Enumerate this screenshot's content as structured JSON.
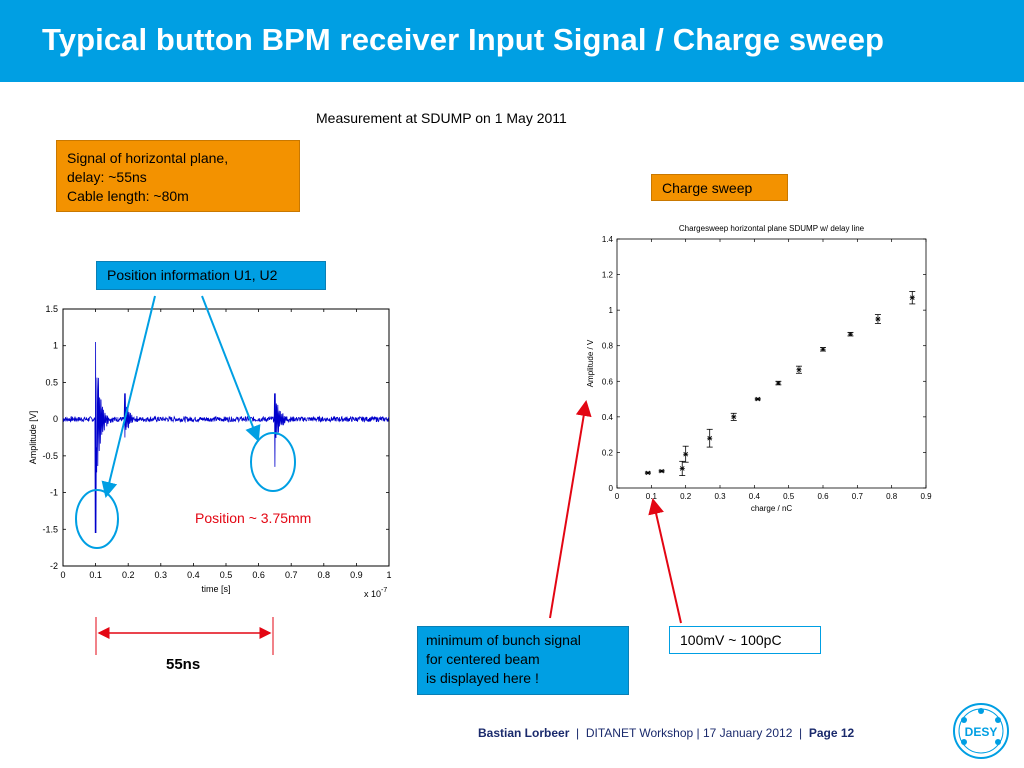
{
  "title": "Typical button BPM receiver Input Signal / Charge sweep",
  "subtitle": "Measurement at SDUMP on 1 May 2011",
  "box_signal": {
    "line1": "Signal of horizontal plane,",
    "line2": "delay:  ~55ns",
    "line3": "Cable length: ~80m"
  },
  "box_charge_sweep": "Charge sweep",
  "box_position_info": "Position information U1, U2",
  "position_note": "Position ~ 3.75mm",
  "duration_label": "55ns",
  "box_minimum": {
    "line1": "minimum of bunch signal",
    "line2": "for centered beam",
    "line3": "is displayed here !"
  },
  "box_ratio": "100mV ~ 100pC",
  "footer": {
    "author": "Bastian Lorbeer",
    "sep": "|",
    "event": "DITANET Workshop | 17 January 2012",
    "page": "Page 12"
  },
  "logo_text": "DESY",
  "colors": {
    "title_bar": "#009fe3",
    "orange": "#f39200",
    "arrow_blue": "#009fe3",
    "arrow_red": "#e30613",
    "trace": "#0000cc"
  },
  "chart_data": [
    {
      "type": "line",
      "title": "",
      "xlabel": "time [s]",
      "ylabel": "Amplitude [V]",
      "x_multiplier": "x 10",
      "x_exponent": "-7",
      "xlim": [
        0,
        1
      ],
      "ylim": [
        -2,
        1.5
      ],
      "x_ticks": [
        "0",
        "0.1",
        "0.2",
        "0.3",
        "0.4",
        "0.5",
        "0.6",
        "0.7",
        "0.8",
        "0.9",
        "1"
      ],
      "y_ticks": [
        "1.5",
        "1",
        "0.5",
        "0",
        "-0.5",
        "-1",
        "-1.5",
        "-2"
      ],
      "events": [
        {
          "x": 0.1,
          "peak": 1.05,
          "trough": -1.55
        },
        {
          "x": 0.19,
          "peak": 0.35,
          "trough": -0.25
        },
        {
          "x": 0.65,
          "peak": 0.35,
          "trough": -0.65
        }
      ]
    },
    {
      "type": "scatter",
      "title": "Chargesweep horizontal plane SDUMP w/ delay line",
      "xlabel": "charge / nC",
      "ylabel": "Amplitude / V",
      "xlim": [
        0,
        0.9
      ],
      "ylim": [
        0,
        1.4
      ],
      "x_ticks": [
        "0",
        "0.1",
        "0.2",
        "0.3",
        "0.4",
        "0.5",
        "0.6",
        "0.7",
        "0.8",
        "0.9"
      ],
      "y_ticks": [
        "1.4",
        "1.2",
        "1",
        "0.8",
        "0.6",
        "0.4",
        "0.2",
        "0"
      ],
      "x": [
        0.09,
        0.13,
        0.19,
        0.2,
        0.27,
        0.34,
        0.41,
        0.47,
        0.53,
        0.6,
        0.68,
        0.76,
        0.86
      ],
      "y": [
        0.085,
        0.095,
        0.11,
        0.19,
        0.28,
        0.4,
        0.5,
        0.59,
        0.665,
        0.78,
        0.865,
        0.95,
        1.07
      ],
      "err": [
        0.005,
        0.005,
        0.04,
        0.045,
        0.05,
        0.02,
        0.005,
        0.01,
        0.02,
        0.01,
        0.01,
        0.025,
        0.035
      ]
    }
  ]
}
